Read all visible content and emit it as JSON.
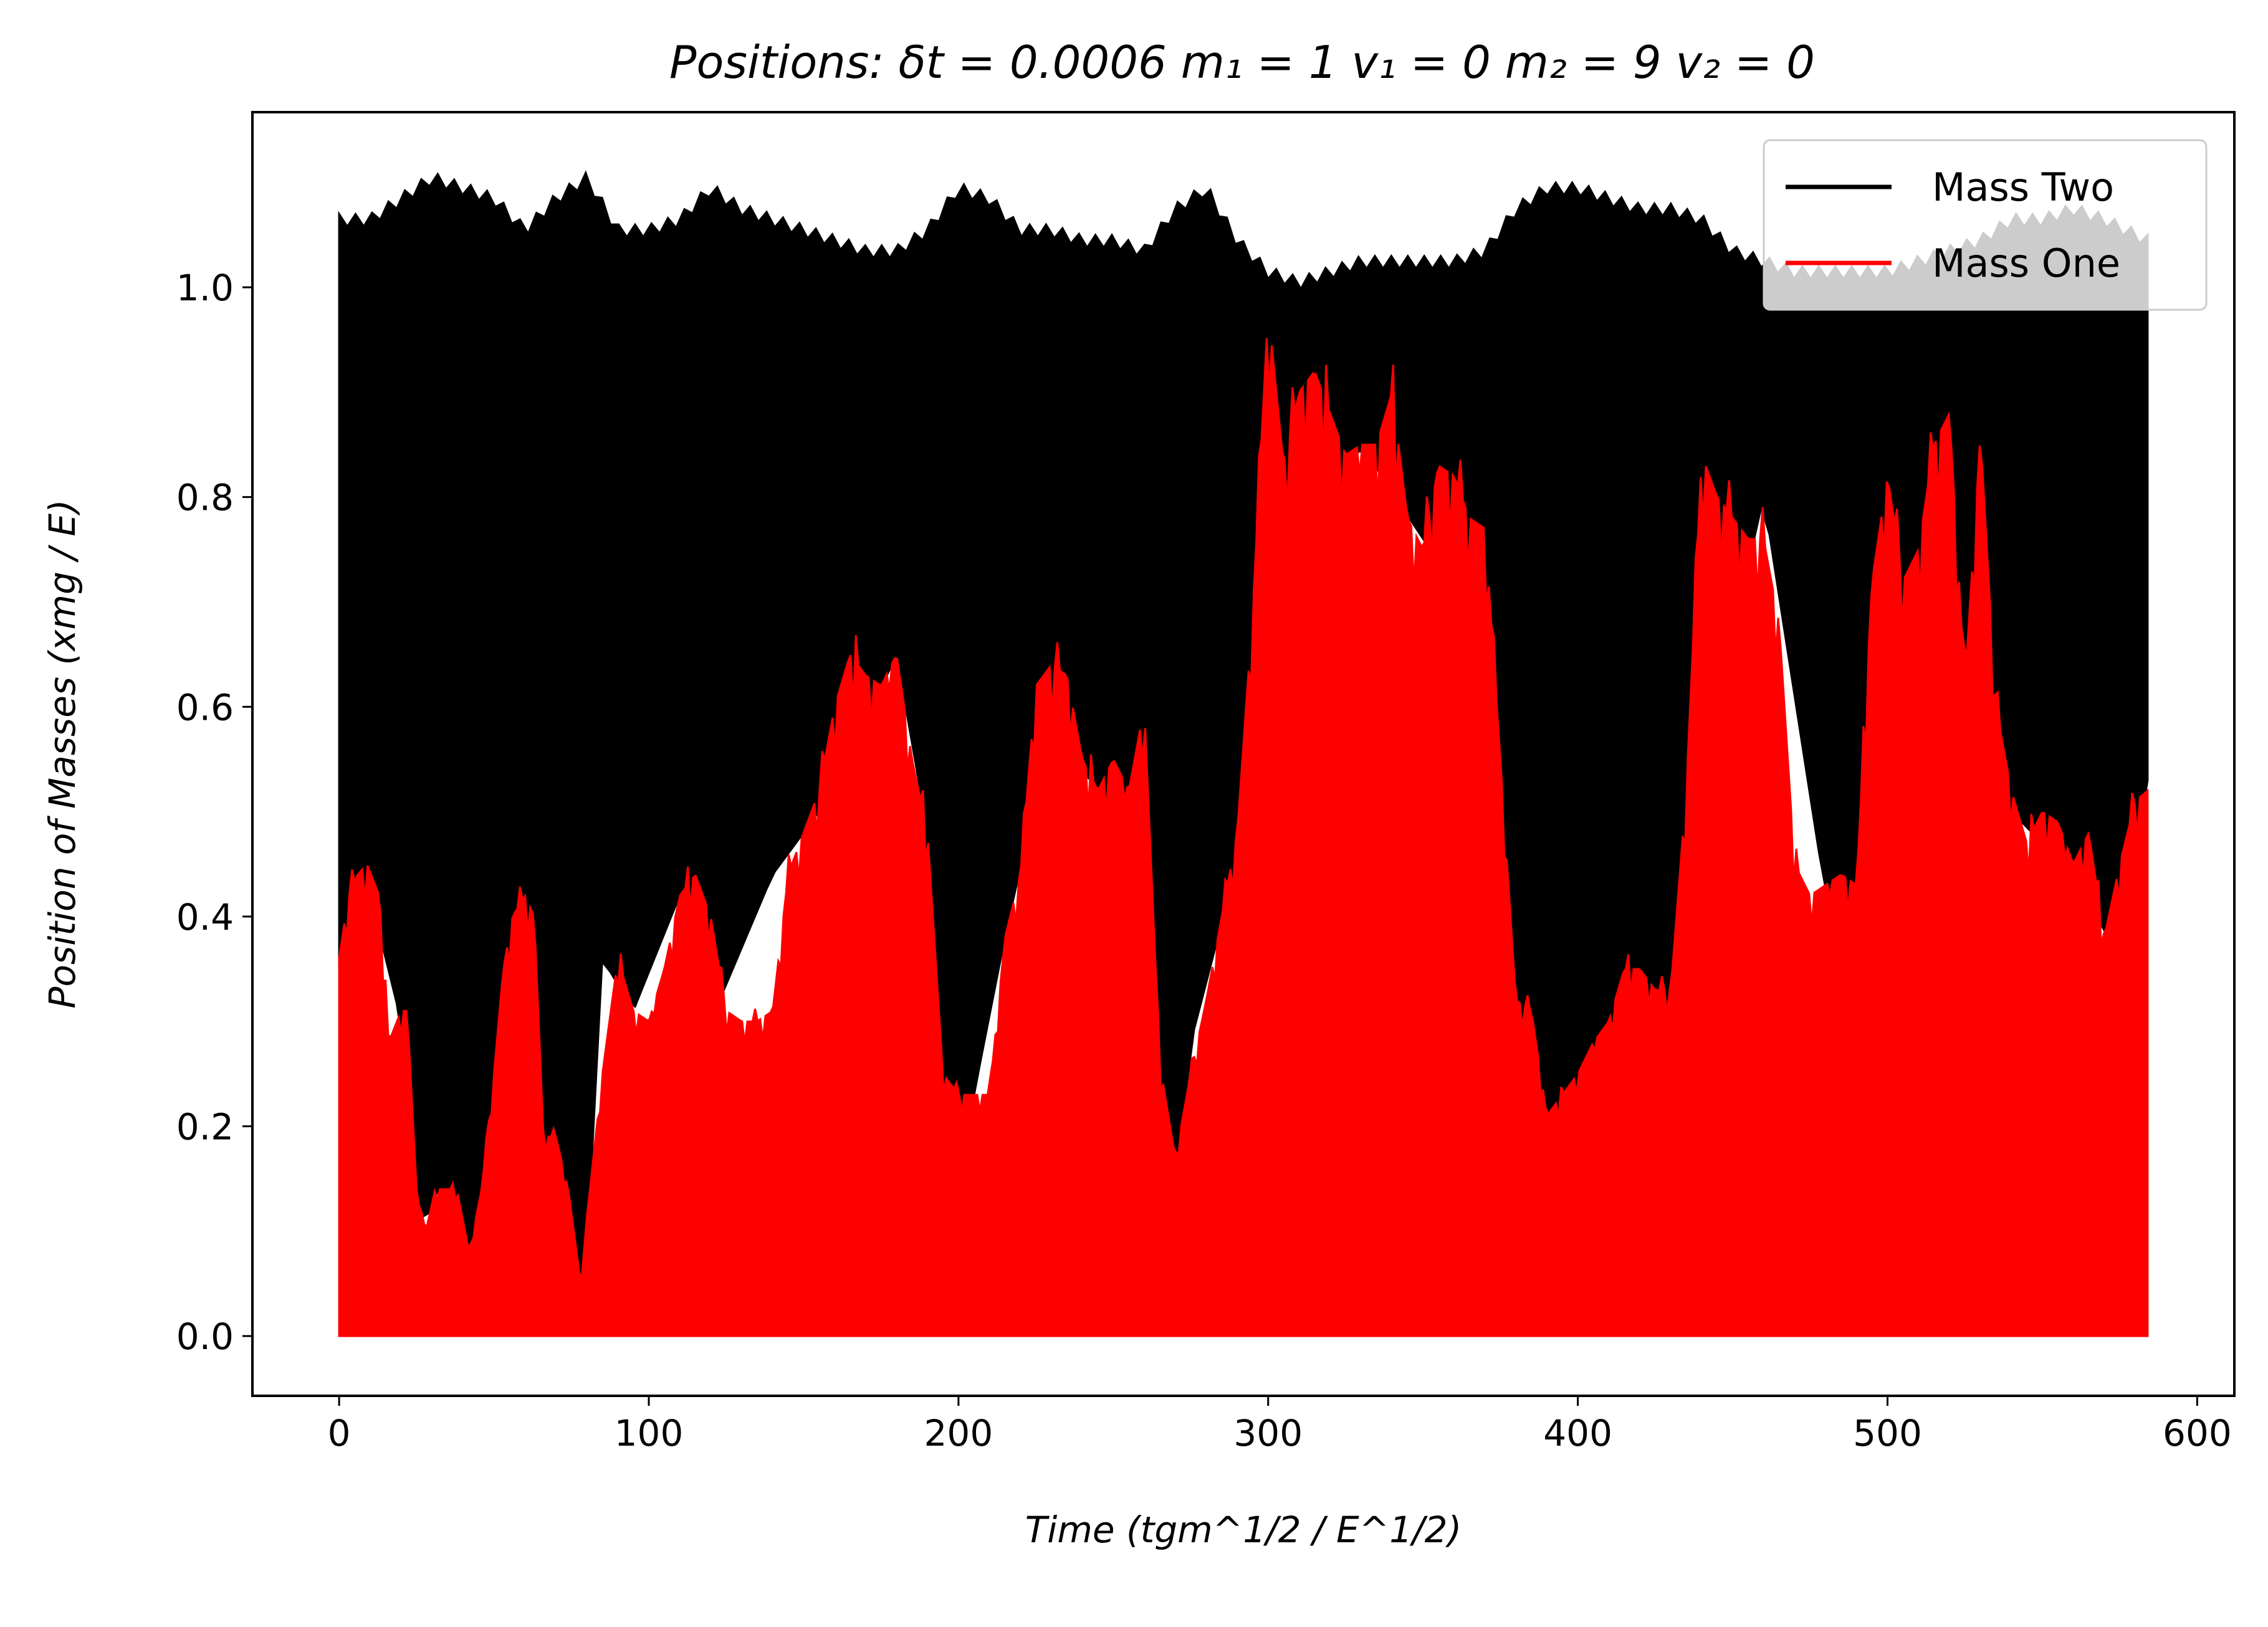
{
  "chart_data": {
    "type": "line",
    "title": "Positions: δt = 0.0006 m₁ = 1 v₁ = 0 m₂ = 9 v₂ = 0",
    "xlabel": "Time (tgm^1/2 / E^1/2)",
    "ylabel": "Position of Masses (xmg / E)",
    "xlim": [
      -28,
      612
    ],
    "ylim": [
      -0.057,
      1.167
    ],
    "xticks": [
      0,
      100,
      200,
      300,
      400,
      500,
      600
    ],
    "xtick_labels": [
      "0",
      "100",
      "200",
      "300",
      "400",
      "500",
      "600"
    ],
    "yticks": [
      0.0,
      0.2,
      0.4,
      0.6,
      0.8,
      1.0
    ],
    "ytick_labels": [
      "0.0",
      "0.2",
      "0.4",
      "0.6",
      "0.8",
      "1.0"
    ],
    "grid": false,
    "legend_position": "top-right",
    "series": [
      {
        "name": "Mass Two",
        "color": "#000000",
        "x_range": [
          0,
          584
        ],
        "upper_envelope": {
          "x": [
            0,
            10,
            20,
            30,
            40,
            50,
            60,
            70,
            80,
            90,
            100,
            110,
            120,
            130,
            140,
            150,
            160,
            170,
            180,
            190,
            200,
            210,
            220,
            230,
            240,
            250,
            260,
            270,
            280,
            290,
            300,
            310,
            320,
            330,
            340,
            350,
            360,
            370,
            380,
            390,
            400,
            410,
            420,
            430,
            440,
            450,
            460,
            470,
            480,
            490,
            500,
            510,
            520,
            530,
            540,
            550,
            560,
            570,
            584
          ],
          "y": [
            1.07,
            1.07,
            1.09,
            1.11,
            1.1,
            1.09,
            1.06,
            1.09,
            1.11,
            1.06,
            1.06,
            1.07,
            1.1,
            1.08,
            1.07,
            1.06,
            1.05,
            1.04,
            1.04,
            1.06,
            1.1,
            1.09,
            1.06,
            1.06,
            1.05,
            1.05,
            1.04,
            1.08,
            1.1,
            1.05,
            1.02,
            1.01,
            1.02,
            1.03,
            1.03,
            1.03,
            1.03,
            1.04,
            1.08,
            1.1,
            1.1,
            1.09,
            1.08,
            1.08,
            1.07,
            1.04,
            1.03,
            1.02,
            1.02,
            1.02,
            1.02,
            1.03,
            1.04,
            1.05,
            1.07,
            1.07,
            1.08,
            1.07,
            1.05
          ]
        },
        "lower_envelope": {
          "x": [
            0,
            10,
            20,
            27,
            32,
            40,
            48,
            55,
            65,
            72,
            79,
            85,
            95,
            110,
            120,
            140,
            160,
            180,
            190,
            196,
            205,
            215,
            230,
            250,
            262,
            268,
            275,
            290,
            310,
            330,
            350,
            370,
            380,
            384,
            392,
            400,
            410,
            420,
            430,
            440,
            460,
            480,
            500,
            520,
            540,
            560,
            575,
            584
          ],
          "y": [
            0.35,
            0.42,
            0.3,
            0.1,
            0.14,
            0.04,
            0.08,
            0.4,
            0.19,
            0.14,
            0.02,
            0.36,
            0.31,
            0.42,
            0.3,
            0.44,
            0.52,
            0.65,
            0.48,
            0.07,
            0.23,
            0.38,
            0.58,
            0.5,
            0.43,
            0.07,
            0.28,
            0.45,
            0.7,
            0.85,
            0.76,
            0.68,
            0.31,
            0.18,
            0.16,
            0.23,
            0.28,
            0.32,
            0.3,
            0.54,
            0.8,
            0.42,
            0.39,
            0.57,
            0.5,
            0.44,
            0.36,
            0.53
          ]
        }
      },
      {
        "name": "Mass One",
        "color": "#ff0000",
        "x_range": [
          0,
          584
        ],
        "minimum": 0.0,
        "upper_envelope": {
          "x": [
            0,
            3,
            6,
            9,
            13,
            16,
            20,
            22,
            25,
            28,
            31,
            35,
            38,
            42,
            46,
            50,
            53,
            56,
            60,
            63,
            66,
            70,
            74,
            78,
            81,
            85,
            90,
            95,
            100,
            105,
            110,
            115,
            120,
            125,
            130,
            135,
            140,
            145,
            150,
            155,
            160,
            165,
            170,
            175,
            180,
            185,
            190,
            195,
            200,
            205,
            210,
            215,
            220,
            225,
            230,
            235,
            240,
            245,
            250,
            255,
            260,
            265,
            270,
            275,
            280,
            285,
            290,
            295,
            300,
            305,
            310,
            315,
            320,
            325,
            330,
            335,
            340,
            345,
            350,
            355,
            360,
            365,
            370,
            375,
            380,
            385,
            390,
            395,
            400,
            405,
            410,
            415,
            420,
            425,
            430,
            435,
            440,
            445,
            450,
            455,
            460,
            465,
            470,
            475,
            480,
            485,
            490,
            495,
            500,
            505,
            510,
            515,
            520,
            525,
            530,
            535,
            540,
            545,
            550,
            555,
            560,
            565,
            570,
            575,
            580,
            584
          ],
          "y": [
            0.36,
            0.42,
            0.44,
            0.45,
            0.42,
            0.28,
            0.31,
            0.31,
            0.14,
            0.1,
            0.14,
            0.14,
            0.14,
            0.08,
            0.14,
            0.25,
            0.35,
            0.4,
            0.42,
            0.4,
            0.19,
            0.19,
            0.14,
            0.05,
            0.14,
            0.25,
            0.36,
            0.31,
            0.3,
            0.35,
            0.42,
            0.44,
            0.4,
            0.31,
            0.3,
            0.3,
            0.31,
            0.44,
            0.48,
            0.52,
            0.6,
            0.65,
            0.63,
            0.62,
            0.65,
            0.55,
            0.48,
            0.25,
            0.23,
            0.23,
            0.23,
            0.38,
            0.44,
            0.62,
            0.64,
            0.63,
            0.55,
            0.52,
            0.55,
            0.52,
            0.6,
            0.26,
            0.17,
            0.25,
            0.32,
            0.4,
            0.48,
            0.69,
            0.98,
            0.83,
            0.9,
            0.92,
            0.88,
            0.84,
            0.85,
            0.85,
            0.9,
            0.78,
            0.75,
            0.83,
            0.82,
            0.78,
            0.77,
            0.55,
            0.32,
            0.31,
            0.21,
            0.23,
            0.25,
            0.28,
            0.3,
            0.35,
            0.35,
            0.33,
            0.33,
            0.52,
            0.84,
            0.8,
            0.78,
            0.76,
            0.76,
            0.68,
            0.45,
            0.42,
            0.43,
            0.44,
            0.43,
            0.72,
            0.82,
            0.72,
            0.75,
            0.85,
            0.88,
            0.62,
            0.86,
            0.6,
            0.52,
            0.47,
            0.5,
            0.49,
            0.45,
            0.48,
            0.38,
            0.45,
            0.51,
            0.52
          ]
        }
      }
    ]
  }
}
